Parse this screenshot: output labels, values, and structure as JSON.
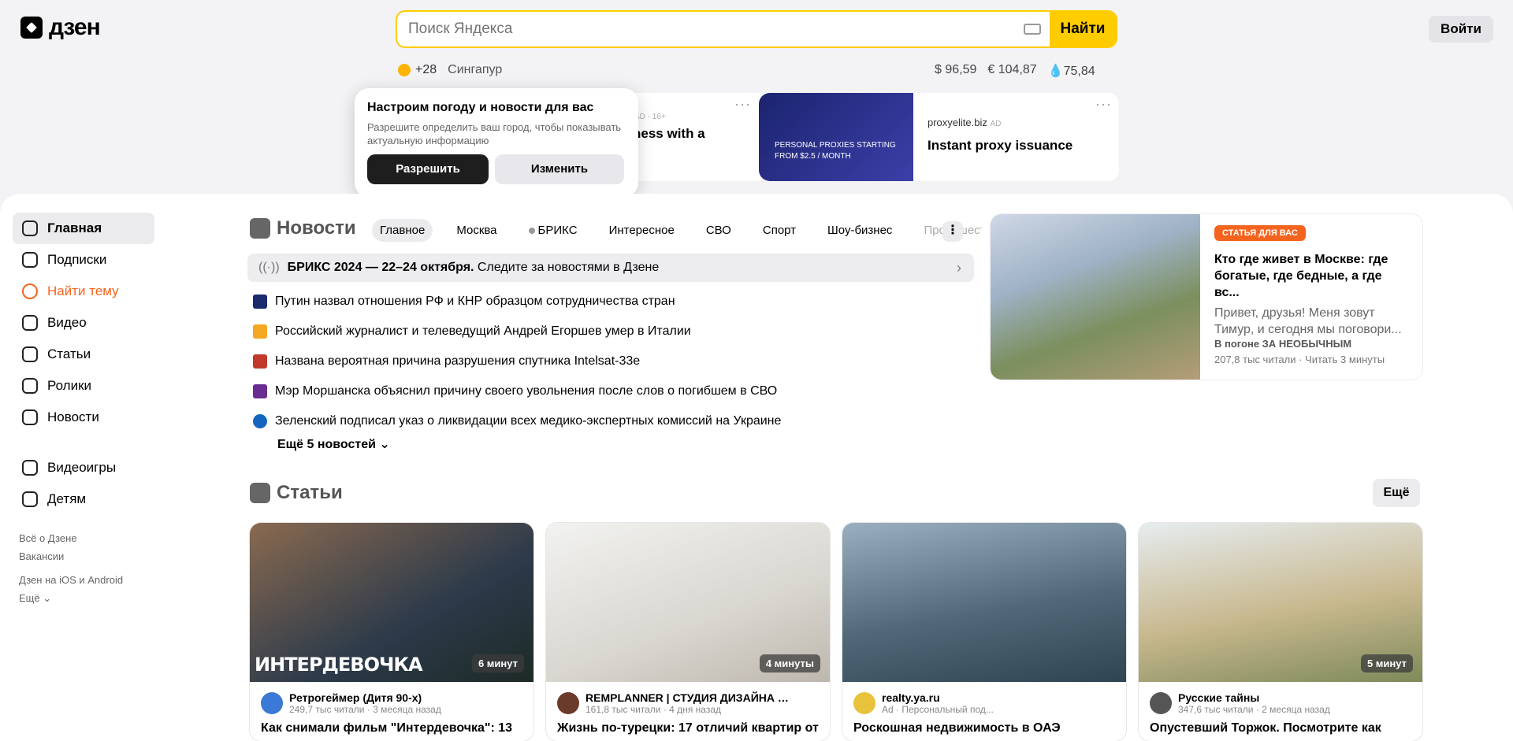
{
  "header": {
    "logo_text": "дзен",
    "search_placeholder": "Поиск Яндекса",
    "search_button": "Найти",
    "login_button": "Войти",
    "weather_temp": "+28",
    "city": "Сингапур",
    "rates": [
      "$ 96,59",
      "€ 104,87",
      "75,84"
    ]
  },
  "ads": {
    "ad1_meta": "AD · 16+",
    "ad1_text": "ness with a",
    "ad2_image_text": "PERSONAL PROXIES STARTING FROM $2.5 / MONTH",
    "ad2_source": "proxyelite.biz",
    "ad2_badge": "AD",
    "ad2_title": "Instant proxy issuance",
    "dots": "···"
  },
  "popup": {
    "title": "Настроим погоду и новости для вас",
    "text": "Разрешите определить ваш город, чтобы показывать актуальную информацию",
    "allow": "Разрешить",
    "change": "Изменить"
  },
  "sidebar": {
    "items": [
      {
        "label": "Главная"
      },
      {
        "label": "Подписки"
      },
      {
        "label": "Найти тему"
      },
      {
        "label": "Видео"
      },
      {
        "label": "Статьи"
      },
      {
        "label": "Ролики"
      },
      {
        "label": "Новости"
      }
    ],
    "items2": [
      {
        "label": "Видеоигры"
      },
      {
        "label": "Детям"
      }
    ],
    "links": [
      "Всё о Дзене",
      "Вакансии",
      "Дзен на iOS и Android",
      "Ещё"
    ]
  },
  "news": {
    "title": "Новости",
    "tabs": [
      "Главное",
      "Москва",
      "БРИКС",
      "Интересное",
      "СВО",
      "Спорт",
      "Шоу-бизнес",
      "Происшествия"
    ],
    "more_tabs": "⋮",
    "banner_bold": "БРИКС 2024 — 22–24 октября.",
    "banner_text": "Следите за новостями в Дзене",
    "items": [
      {
        "text": "Путин назвал отношения РФ и КНР образцом сотрудничества стран",
        "color": "#1a2a6c"
      },
      {
        "text": "Российский журналист и телеведущий Андрей Егоршев умер в Италии",
        "color": "#f5a623"
      },
      {
        "text": "Названа вероятная причина разрушения спутника Intelsat-33e",
        "color": "#c0392b"
      },
      {
        "text": "Мэр Моршанска объяснил причину своего увольнения после слов о погибшем в СВО",
        "color": "#6a2c91"
      },
      {
        "text": "Зеленский подписал указ о ликвидации всех медико-экспертных комиссий на Украине",
        "color": "#1565c0"
      }
    ],
    "more": "Ещё 5 новостей"
  },
  "feature": {
    "badge": "СТАТЬЯ ДЛЯ ВАС",
    "title": "Кто где живет в Москве: где богатые, где бедные, а где вс...",
    "lead": "Привет, друзья! Меня зовут Тимур, и сегодня мы поговори...",
    "source": "В погоне ЗА НЕОБЫЧНЫМ",
    "meta": "207,8 тыс читали · Читать 3 минуты"
  },
  "articles": {
    "title": "Статьи",
    "more": "Ещё",
    "cards": [
      {
        "overlay": "ИНТЕРДЕВОЧКА",
        "time": "6 минут",
        "source": "Ретрогеймер (Дитя 90-х)",
        "meta": "249,7 тыс читали · 3 месяца назад",
        "title": "Как снимали фильм \"Интердевочка\": 13"
      },
      {
        "overlay": "",
        "time": "4 минуты",
        "source": "REMPLANNER | СТУДИЯ ДИЗАЙНА | ПЛАН...",
        "meta": "161,8 тыс читали · 4 дня назад",
        "title": "Жизнь по-турецки: 17 отличий квартир от"
      },
      {
        "overlay": "",
        "time": "",
        "source": "realty.ya.ru",
        "meta": "Ad · Персональный под...",
        "title": "Роскошная недвижимость в ОАЭ"
      },
      {
        "overlay": "",
        "time": "5 минут",
        "source": "Русские тайны",
        "meta": "347,6 тыс читали · 2 месяца назад",
        "title": "Опустевший Торжок. Посмотрите как"
      }
    ]
  }
}
